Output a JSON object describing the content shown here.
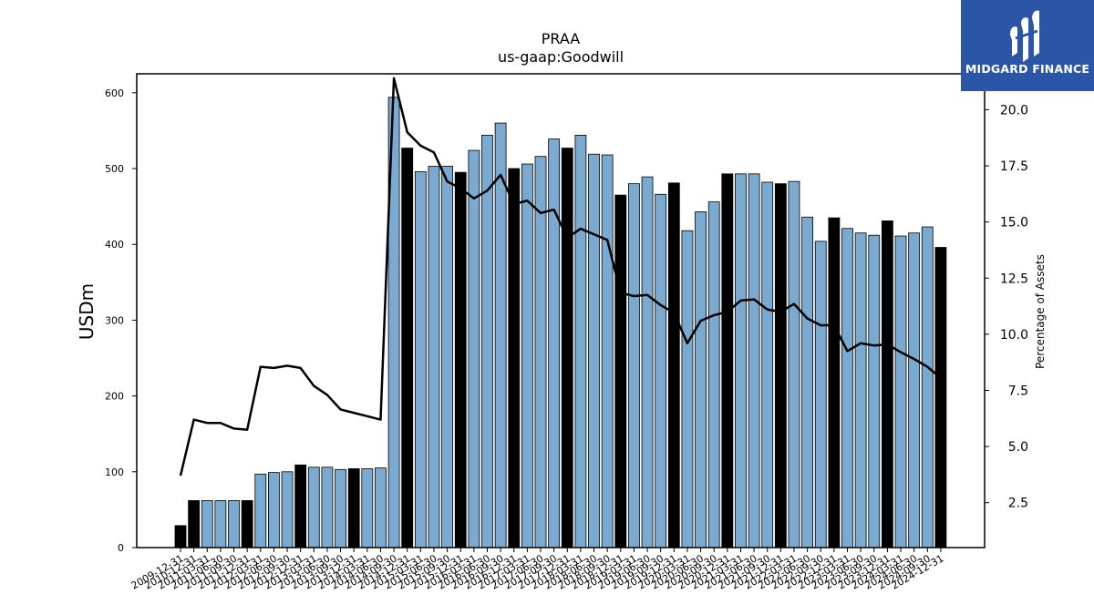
{
  "chart_data": {
    "type": "bar",
    "title": "PRAA",
    "subtitle": "us-gaap:Goodwill",
    "ylabel": "USDm",
    "y2label": "Percentage of Assets",
    "ylim": [
      0,
      625
    ],
    "y2lim": [
      0.5,
      21.6
    ],
    "yticks": [
      0,
      100,
      200,
      300,
      400,
      500,
      600
    ],
    "y2ticks": [
      2.5,
      5.0,
      7.5,
      10.0,
      12.5,
      15.0,
      17.5,
      20.0
    ],
    "categories": [
      "2009-12-31",
      "2010-12-31",
      "2011-03-31",
      "2011-06-30",
      "2011-09-30",
      "2011-12-31",
      "2012-03-31",
      "2012-06-30",
      "2012-09-30",
      "2012-12-31",
      "2013-03-31",
      "2013-06-30",
      "2013-09-30",
      "2013-12-31",
      "2014-03-31",
      "2014-06-30",
      "2014-09-30",
      "2014-12-31",
      "2015-03-31",
      "2015-06-30",
      "2015-09-30",
      "2015-12-31",
      "2016-03-31",
      "2016-06-30",
      "2016-09-30",
      "2016-12-31",
      "2017-03-31",
      "2017-06-30",
      "2017-09-30",
      "2017-12-31",
      "2018-03-31",
      "2018-06-30",
      "2018-09-30",
      "2018-12-31",
      "2019-03-31",
      "2019-06-30",
      "2019-09-30",
      "2019-12-31",
      "2020-03-31",
      "2020-06-30",
      "2020-09-30",
      "2020-12-31",
      "2021-03-31",
      "2021-06-30",
      "2021-09-30",
      "2021-12-31",
      "2022-03-31",
      "2022-06-30",
      "2022-09-30",
      "2022-12-31",
      "2023-03-31",
      "2023-06-30",
      "2023-09-30",
      "2023-12-31",
      "2024-03-31",
      "2024-06-30",
      "2024-09-30",
      "2024-12-31"
    ],
    "series": [
      {
        "kind": "bar",
        "values": [
          29,
          62,
          62,
          62,
          62,
          62,
          97,
          99,
          100,
          109,
          106,
          106,
          103,
          104,
          104,
          105,
          594,
          527,
          496,
          503,
          503,
          495,
          524,
          544,
          560,
          500,
          506,
          516,
          539,
          527,
          544,
          519,
          518,
          465,
          480,
          489,
          466,
          481,
          418,
          443,
          456,
          493,
          493,
          493,
          482,
          480,
          483,
          436,
          404,
          435,
          421,
          415,
          412,
          431,
          411,
          415,
          423,
          396
        ],
        "annual_color": "#000000",
        "quarterly_color": "#7aaad0"
      },
      {
        "kind": "line",
        "axis": "right",
        "color": "#000000",
        "values": [
          3.7,
          6.2,
          6.05,
          6.05,
          5.8,
          5.75,
          8.55,
          8.5,
          8.6,
          8.5,
          7.7,
          7.3,
          6.65,
          6.5,
          6.35,
          6.2,
          21.4,
          19.0,
          18.4,
          18.1,
          16.8,
          16.5,
          16.05,
          16.4,
          17.1,
          15.8,
          15.95,
          15.4,
          15.55,
          14.3,
          14.7,
          14.45,
          14.2,
          11.85,
          11.7,
          11.75,
          11.3,
          10.95,
          9.6,
          10.6,
          10.85,
          11.0,
          11.5,
          11.55,
          11.1,
          11.0,
          11.35,
          10.7,
          10.4,
          10.4,
          9.25,
          9.6,
          9.5,
          9.55,
          9.2,
          8.9,
          8.55,
          8.05
        ]
      }
    ],
    "annual_categories": [
      "2009-12-31",
      "2010-12-31",
      "2011-12-31",
      "2012-12-31",
      "2013-12-31",
      "2014-12-31",
      "2015-12-31",
      "2016-12-31",
      "2017-12-31",
      "2018-12-31",
      "2019-12-31",
      "2020-12-31",
      "2021-12-31",
      "2022-12-31",
      "2023-12-31",
      "2024-12-31"
    ]
  },
  "logo": {
    "text": "MIDGARD FINANCE",
    "background": "#2b56a8"
  }
}
